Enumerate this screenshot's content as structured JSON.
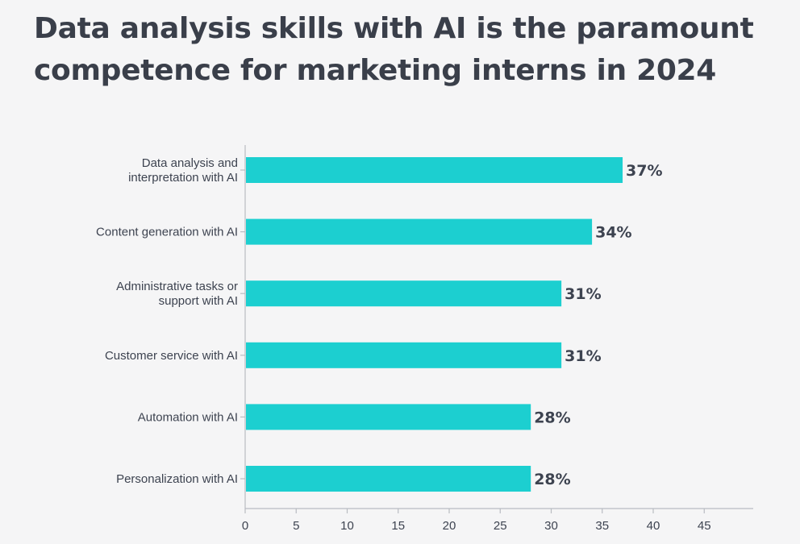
{
  "title_lines": [
    "Data analysis skills with AI is the paramount",
    "competence for marketing interns in 2024"
  ],
  "colors": {
    "bar": "#1ccfd0",
    "text": "#3d4350",
    "axis": "#b9bcc2",
    "background": "#f5f5f6"
  },
  "chart_data": {
    "type": "bar",
    "orientation": "horizontal",
    "title": "Data analysis skills with AI is the paramount competence for marketing interns in 2024",
    "categories": [
      [
        "Data analysis and",
        "interpretation with AI"
      ],
      [
        "Content generation with AI"
      ],
      [
        "Administrative tasks or",
        "support with AI"
      ],
      [
        "Customer service with AI"
      ],
      [
        "Automation with AI"
      ],
      [
        "Personalization with AI"
      ]
    ],
    "values": [
      37,
      34,
      31,
      31,
      28,
      28
    ],
    "value_labels": [
      "37%",
      "34%",
      "31%",
      "31%",
      "28%",
      "28%"
    ],
    "xlim": [
      0,
      50
    ],
    "xticks": [
      0,
      5,
      10,
      15,
      20,
      25,
      30,
      35,
      40,
      45
    ],
    "xlabel": "",
    "ylabel": "",
    "grid": false,
    "legend": "none"
  }
}
